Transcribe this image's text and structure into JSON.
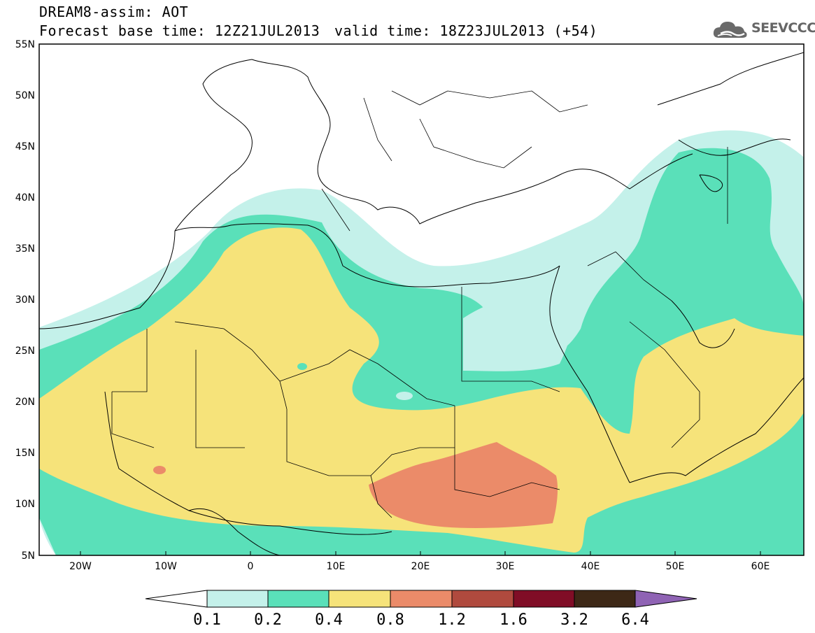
{
  "header": {
    "title": "DREAM8-assim: AOT",
    "base_time": "Forecast base time: 12Z21JUL2013",
    "valid_time": "valid time: 18Z23JUL2013 (+54)"
  },
  "logo": {
    "text": "SEEVCCC",
    "icon": "cloud-icon"
  },
  "axes": {
    "lat_labels": [
      "55N",
      "50N",
      "45N",
      "40N",
      "35N",
      "30N",
      "25N",
      "20N",
      "15N",
      "10N",
      "5N"
    ],
    "lon_labels": [
      "20W",
      "10W",
      "0",
      "10E",
      "20E",
      "30E",
      "40E",
      "50E",
      "60E"
    ]
  },
  "legend": {
    "bins": [
      {
        "color": "#c4f1ea"
      },
      {
        "color": "#5ae0b9"
      },
      {
        "color": "#f6e37a"
      },
      {
        "color": "#eb8b69"
      },
      {
        "color": "#b04a3e"
      },
      {
        "color": "#800d26"
      },
      {
        "color": "#3d2816"
      }
    ],
    "under_color": "#ffffff",
    "over_color": "#8f63b4",
    "labels": [
      "0.1",
      "0.2",
      "0.4",
      "0.8",
      "1.2",
      "1.6",
      "3.2",
      "6.4"
    ]
  },
  "colors": {
    "very_low": "#c4f1ea",
    "low": "#5ae0b9",
    "moderate": "#f6e37a",
    "high": "#eb8b69",
    "border": "#000000"
  }
}
